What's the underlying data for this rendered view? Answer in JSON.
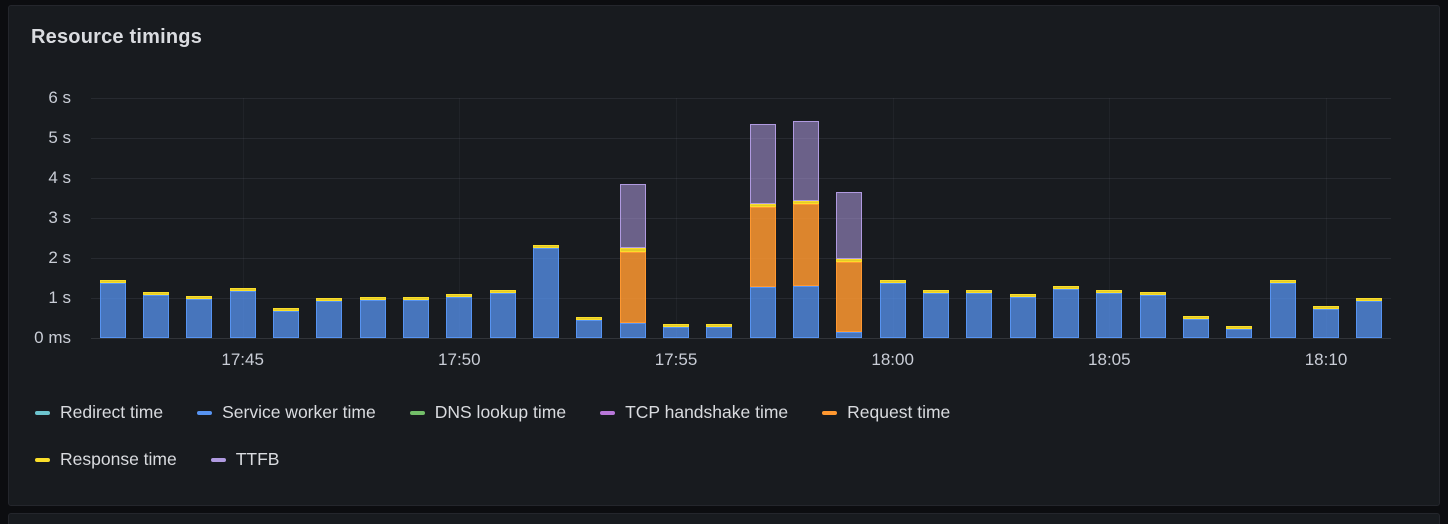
{
  "panel": {
    "title": "Resource timings"
  },
  "chart_data": {
    "type": "bar",
    "stacked": true,
    "title": "Resource timings",
    "ylabel": "",
    "xlabel": "",
    "ylim": [
      0,
      6
    ],
    "yticks": [
      "6 s",
      "5 s",
      "4 s",
      "3 s",
      "2 s",
      "1 s",
      "0 ms"
    ],
    "ytick_values": [
      6,
      5,
      4,
      3,
      2,
      1,
      0
    ],
    "xticks": [
      "17:45",
      "17:50",
      "17:55",
      "18:00",
      "18:05",
      "18:10"
    ],
    "xtick_bar_index": [
      3,
      8,
      13,
      18,
      23,
      28
    ],
    "x": [
      "17:42",
      "17:43",
      "17:44",
      "17:45",
      "17:46",
      "17:47",
      "17:48",
      "17:49",
      "17:50",
      "17:51",
      "17:52",
      "17:53",
      "17:54",
      "17:55",
      "17:56",
      "17:57",
      "17:58",
      "17:59",
      "18:00",
      "18:01",
      "18:02",
      "18:03",
      "18:04",
      "18:05",
      "18:06",
      "18:07",
      "18:08",
      "18:09",
      "18:10",
      "18:11"
    ],
    "unit": "seconds",
    "series": [
      {
        "name": "Service worker time",
        "color": "#5794F2",
        "fill_alpha": 0.75,
        "values": [
          1.37,
          1.07,
          0.97,
          1.17,
          0.68,
          0.92,
          0.95,
          0.95,
          1.02,
          1.12,
          2.25,
          0.45,
          0.38,
          0.28,
          0.28,
          1.28,
          1.3,
          0.15,
          1.37,
          1.12,
          1.12,
          1.02,
          1.22,
          1.12,
          1.07,
          0.48,
          0.22,
          1.37,
          0.73,
          0.92
        ]
      },
      {
        "name": "Request time",
        "color": "#FF9830",
        "fill_alpha": 0.85,
        "values": [
          0,
          0,
          0,
          0,
          0,
          0,
          0,
          0,
          0,
          0,
          0,
          0,
          1.78,
          0,
          0,
          2.0,
          2.05,
          1.75,
          0,
          0,
          0,
          0,
          0,
          0,
          0,
          0,
          0,
          0,
          0,
          0
        ]
      },
      {
        "name": "Response time",
        "color": "#FADE2A",
        "fill_alpha": 0.9,
        "values": [
          0.08,
          0.08,
          0.08,
          0.08,
          0.08,
          0.08,
          0.08,
          0.08,
          0.08,
          0.08,
          0.08,
          0.08,
          0.08,
          0.08,
          0.08,
          0.08,
          0.08,
          0.08,
          0.08,
          0.08,
          0.08,
          0.08,
          0.08,
          0.08,
          0.08,
          0.08,
          0.08,
          0.08,
          0.08,
          0.08
        ]
      },
      {
        "name": "TTFB",
        "color": "#B09AE0",
        "fill_alpha": 0.55,
        "values": [
          0,
          0,
          0,
          0,
          0,
          0,
          0,
          0,
          0,
          0,
          0,
          0,
          1.6,
          0,
          0,
          2.0,
          2.0,
          1.68,
          0,
          0,
          0,
          0,
          0,
          0,
          0,
          0,
          0,
          0,
          0,
          0
        ]
      }
    ],
    "legend_position": "bottom",
    "legend_rows": [
      5,
      2
    ],
    "legend": [
      {
        "label": "Redirect time",
        "color": "#6CC4CE"
      },
      {
        "label": "Service worker time",
        "color": "#5794F2"
      },
      {
        "label": "DNS lookup time",
        "color": "#73BF69"
      },
      {
        "label": "TCP handshake time",
        "color": "#B877D9"
      },
      {
        "label": "Request time",
        "color": "#FF9830"
      },
      {
        "label": "Response time",
        "color": "#FADE2A"
      },
      {
        "label": "TTFB",
        "color": "#B09AE0"
      }
    ]
  }
}
